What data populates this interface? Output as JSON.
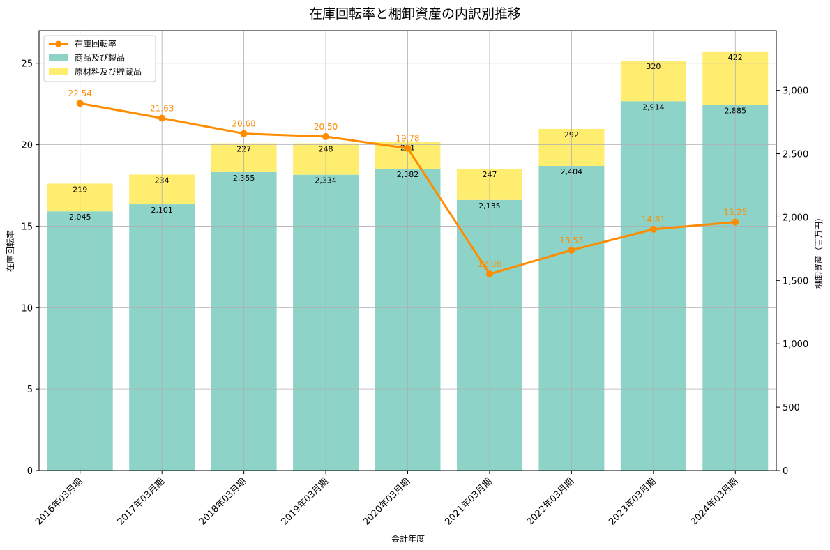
{
  "chart_data": {
    "type": "bar",
    "title": "在庫回転率と棚卸資産の内訳別推移",
    "xlabel": "会計年度",
    "ylabel": "在庫回転率",
    "y2label": "棚卸資産（百万円）",
    "ylim": [
      0,
      27
    ],
    "y2lim": [
      0,
      3471
    ],
    "yticks": [
      0,
      5,
      10,
      15,
      20,
      25
    ],
    "y2ticks": [
      0,
      500,
      1000,
      1500,
      2000,
      2500,
      3000
    ],
    "y2tick_labels": [
      "0",
      "500",
      "1,000",
      "1,500",
      "2,000",
      "2,500",
      "3,000"
    ],
    "grid": true,
    "legend_position": "top-left",
    "categories": [
      "2016年03月期",
      "2017年03月期",
      "2018年03月期",
      "2019年03月期",
      "2020年03月期",
      "2021年03月期",
      "2022年03月期",
      "2023年03月期",
      "2024年03月期"
    ],
    "series": [
      {
        "name": "商品及び製品",
        "kind": "stacked-bar",
        "axis": "right",
        "color": "#8dd3c7",
        "values": [
          2045,
          2101,
          2355,
          2334,
          2382,
          2135,
          2404,
          2914,
          2885
        ],
        "labels": [
          "2,045",
          "2,101",
          "2,355",
          "2,334",
          "2,382",
          "2,135",
          "2,404",
          "2,914",
          "2,885"
        ]
      },
      {
        "name": "原材料及び貯蔵品",
        "kind": "stacked-bar",
        "axis": "right",
        "color": "#ffed6f",
        "values": [
          219,
          234,
          227,
          248,
          211,
          247,
          292,
          320,
          422
        ],
        "labels": [
          "219",
          "234",
          "227",
          "248",
          "211",
          "247",
          "292",
          "320",
          "422"
        ]
      },
      {
        "name": "在庫回転率",
        "kind": "line",
        "axis": "left",
        "color": "#ff8c00",
        "values": [
          22.54,
          21.63,
          20.68,
          20.5,
          19.78,
          12.06,
          13.53,
          14.81,
          15.25
        ],
        "labels": [
          "22.54",
          "21.63",
          "20.68",
          "20.50",
          "19.78",
          "12.06",
          "13.53",
          "14.81",
          "15.25"
        ]
      }
    ]
  }
}
